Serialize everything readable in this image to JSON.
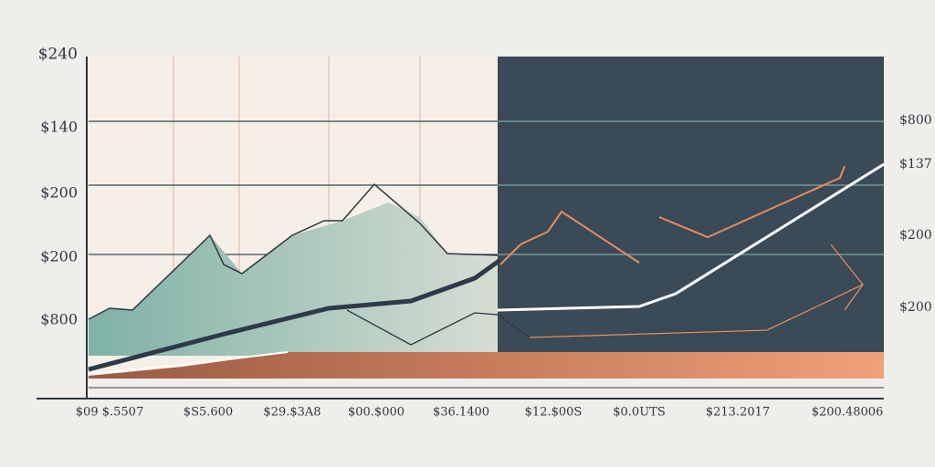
{
  "left_labels": [
    "$240",
    "$140",
    "$200",
    "$200",
    "$800"
  ],
  "right_labels": [
    "$800",
    "$137",
    "$200",
    "$200"
  ],
  "bottom_labels": [
    "$09 $.5507",
    "$S5.600",
    "$29.$3A8",
    "$00.$000",
    "$36.1400",
    "$12.$00S",
    "$0.0UTS",
    "$213.2017",
    "$200.48006"
  ]
}
